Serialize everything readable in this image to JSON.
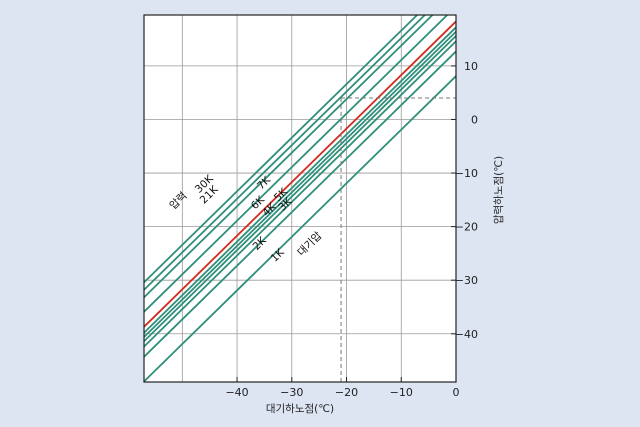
{
  "chart_data": {
    "type": "line",
    "title": "",
    "xlabel": "대기하노점(℃)",
    "ylabel": "압력하노점(℃)",
    "xlim": [
      -57,
      0
    ],
    "ylim": [
      -49,
      19.5
    ],
    "x_ticks": [
      -40,
      -30,
      -20,
      -10,
      0
    ],
    "x_tick_labels": [
      "−40",
      "−30",
      "−20",
      "−10",
      "0"
    ],
    "y_ticks": [
      -40,
      -30,
      -20,
      -10,
      0,
      10
    ],
    "y_tick_labels": [
      "−40",
      "−30",
      "−20",
      "−10",
      "0",
      "10"
    ],
    "grid": true,
    "series": [
      {
        "name": "1K",
        "color": "#2f8f7a",
        "offset": 8.1
      },
      {
        "name": "2K",
        "color": "#2f8f7a",
        "offset": 12.7
      },
      {
        "name": "3K",
        "color": "#2f8f7a",
        "offset": 14.6
      },
      {
        "name": "4K",
        "color": "#2f8f7a",
        "offset": 15.6
      },
      {
        "name": "5K",
        "color": "#2f8f7a",
        "offset": 16.4
      },
      {
        "name": "6K",
        "color": "#2f8f7a",
        "offset": 17.2
      },
      {
        "name": "7K",
        "color": "#d42a1f",
        "offset": 18.3
      },
      {
        "name": "21K",
        "color": "#2f8f7a",
        "offset": 23.8
      },
      {
        "name": "30K",
        "color": "#2f8f7a",
        "offset": 25.2
      },
      {
        "name": "",
        "color": "#2f8f7a",
        "offset": 26.6
      },
      {
        "name": "",
        "color": "#2f8f7a",
        "offset": 21.1
      }
    ],
    "labels": [
      {
        "text": "압력",
        "x": -50.3,
        "y": -15.6
      },
      {
        "text": "30K",
        "x": -45.6,
        "y": -12.5
      },
      {
        "text": "21K",
        "x": -44.7,
        "y": -14.5
      },
      {
        "text": "7K",
        "x": -34.7,
        "y": -12.3
      },
      {
        "text": "6K",
        "x": -35.8,
        "y": -16.0
      },
      {
        "text": "4K",
        "x": -33.7,
        "y": -17.3
      },
      {
        "text": "5K",
        "x": -31.6,
        "y": -14.5
      },
      {
        "text": "3K",
        "x": -30.8,
        "y": -16.3
      },
      {
        "text": "2K",
        "x": -35.5,
        "y": -23.6
      },
      {
        "text": "1K",
        "x": -32.2,
        "y": -25.8
      },
      {
        "text": "대기압",
        "x": -26.3,
        "y": -23.7
      }
    ],
    "reference": {
      "x": -21,
      "y": 4
    }
  }
}
